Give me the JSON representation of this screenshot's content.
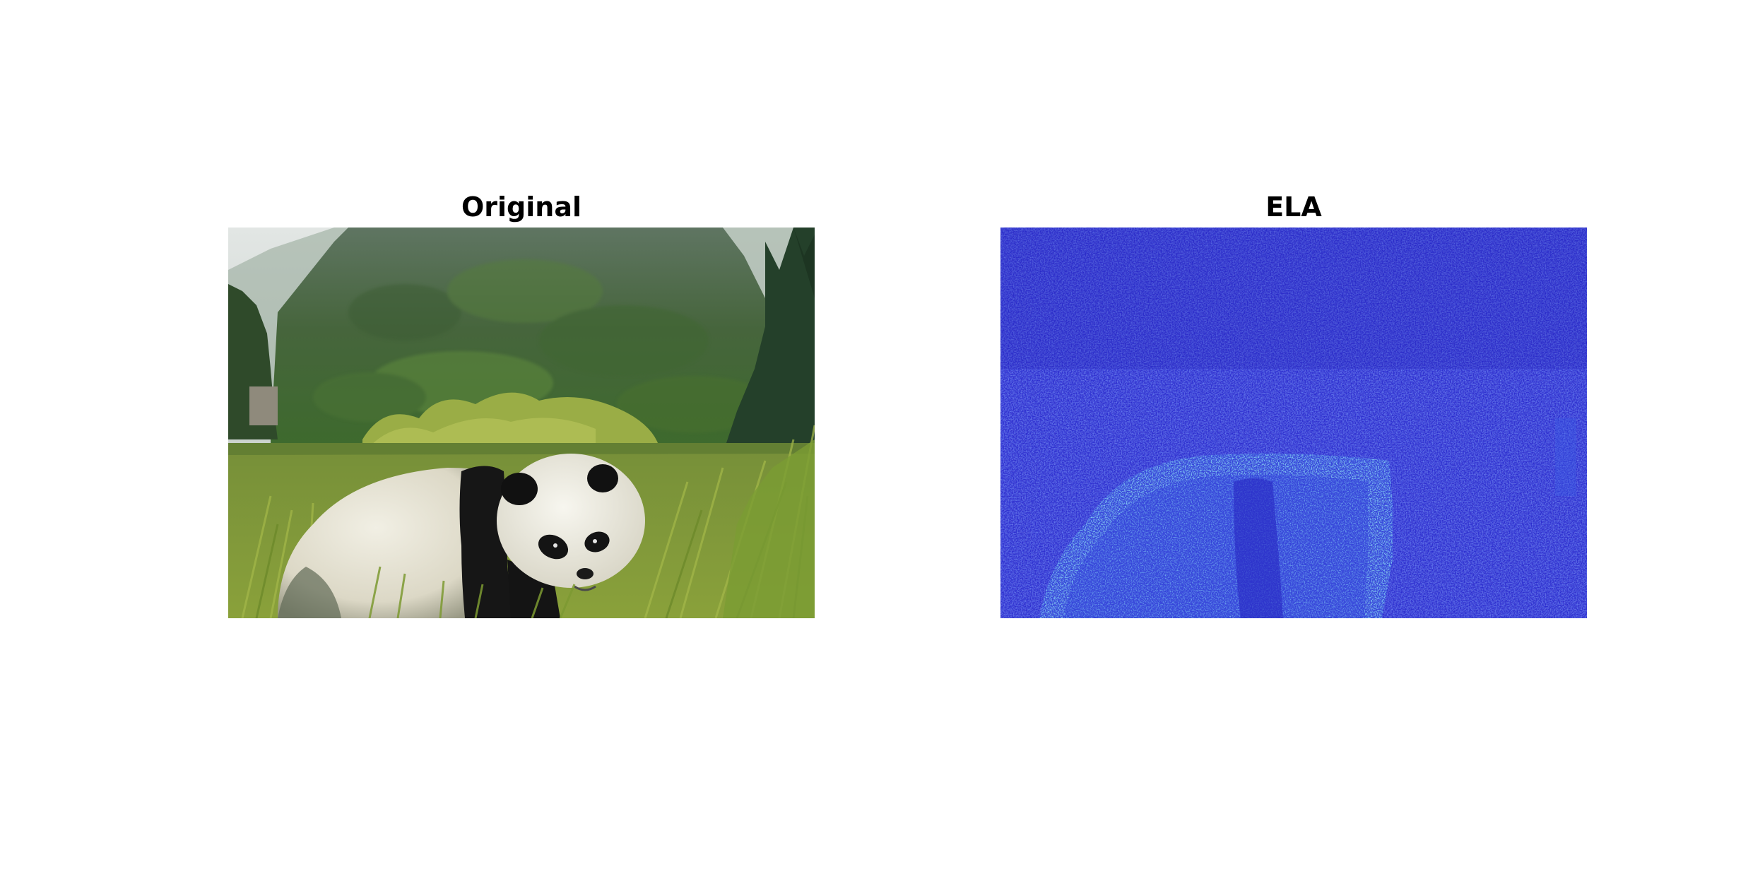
{
  "figure": {
    "left_panel": {
      "title": "Original",
      "image": "panda-in-grassland-photo",
      "colors": {
        "sky": "#dfe3e1",
        "mountain": "#40583a",
        "forest": "#4f7536",
        "meadow": "#7f9a34",
        "grass_bright": "#9fb043",
        "panda_white": "#e9e6d8",
        "panda_black": "#151515"
      }
    },
    "right_panel": {
      "title": "ELA",
      "image": "error-level-analysis-map",
      "colors": {
        "background": "#2c2ed0",
        "noise_light": "#3a5be6",
        "noise_dark": "#2524b8",
        "highlight_cyan": "#38b4e8",
        "highlight_yellow": "#d9e24a"
      }
    }
  }
}
